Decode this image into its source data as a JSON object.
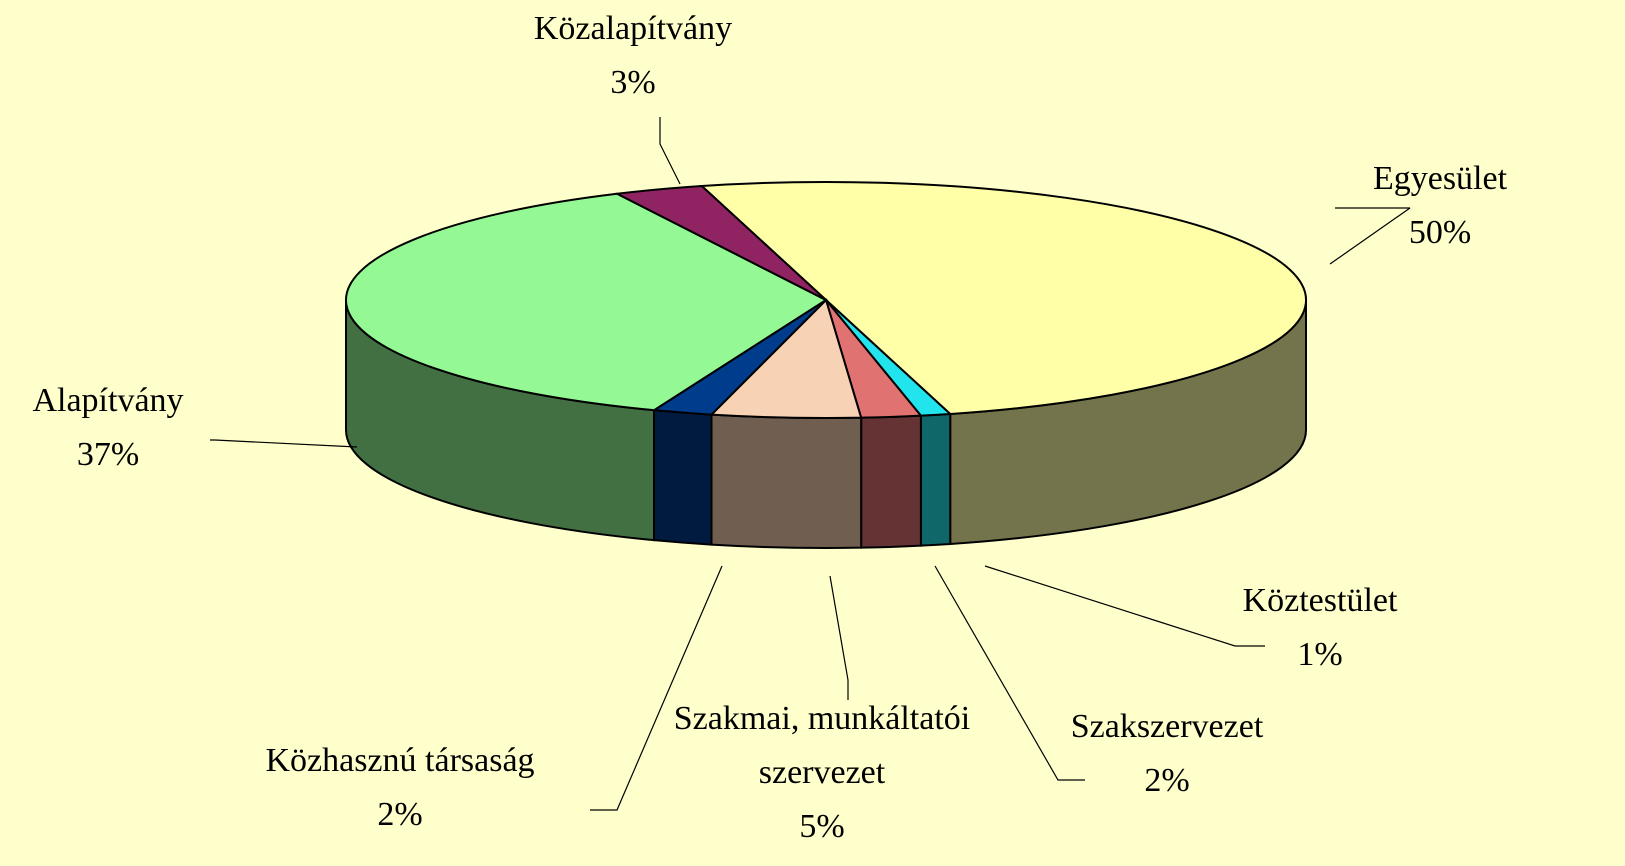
{
  "chart_data": {
    "type": "pie",
    "categories": [
      "Egyesület",
      "Köztestület",
      "Szakszervezet",
      "Szakmai, munkáltatói szervezet",
      "Közhasznú társaság",
      "Alapítvány",
      "Közalapítvány"
    ],
    "values": [
      50,
      1,
      2,
      5,
      2,
      37,
      3
    ],
    "value_labels": [
      "50%",
      "1%",
      "2%",
      "5%",
      "2%",
      "37%",
      "3%"
    ],
    "colors": [
      "#ffffa8",
      "#22e4ec",
      "#e07272",
      "#f8d2b4",
      "#003c8c",
      "#94f894",
      "#902462"
    ]
  }
}
